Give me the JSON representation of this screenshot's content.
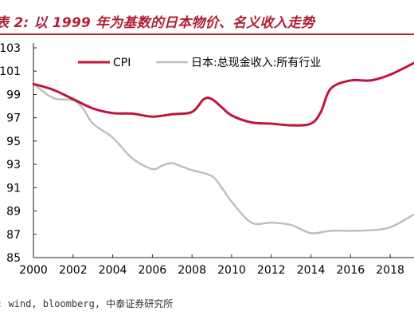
{
  "header": {
    "title": "表 2: 以 1999 年为基数的日本物价、名义收入走势"
  },
  "footer": {
    "source": ": wind, bloomberg, 中泰证券研究所"
  },
  "colors": {
    "accent": "#b01f35",
    "cpi": "#c0143c",
    "income": "#bdbdbd"
  },
  "chart_data": {
    "type": "line",
    "xlim": [
      2000,
      2019.2
    ],
    "ylim": [
      85,
      103
    ],
    "x_ticks": [
      2000,
      2002,
      2004,
      2006,
      2008,
      2010,
      2012,
      2014,
      2016,
      2018
    ],
    "y_ticks": [
      85,
      87,
      89,
      91,
      93,
      95,
      97,
      99,
      101,
      103
    ],
    "grid": false,
    "legend_position": "top-left",
    "series": [
      {
        "name": "CPI",
        "color": "#c0143c",
        "x": [
          2000,
          2001,
          2002,
          2003,
          2004,
          2005,
          2006,
          2007,
          2008,
          2008.6,
          2009,
          2009.5,
          2010,
          2011,
          2012,
          2013,
          2014,
          2014.5,
          2015,
          2016,
          2017,
          2018,
          2019.2
        ],
        "y": [
          99.9,
          99.4,
          98.6,
          97.8,
          97.4,
          97.35,
          97.1,
          97.3,
          97.5,
          98.6,
          98.6,
          97.9,
          97.2,
          96.6,
          96.5,
          96.35,
          96.5,
          97.5,
          99.5,
          100.2,
          100.2,
          100.7,
          101.7
        ]
      },
      {
        "name": "日本:总现金收入:所有行业",
        "color": "#bdbdbd",
        "x": [
          2000,
          2001,
          2002,
          2002.5,
          2003,
          2004,
          2005,
          2006,
          2006.5,
          2007,
          2007.5,
          2008,
          2009,
          2009.5,
          2010,
          2011,
          2012,
          2013,
          2014,
          2015,
          2016,
          2017,
          2018,
          2019.2
        ],
        "y": [
          99.9,
          98.7,
          98.5,
          97.8,
          96.5,
          95.3,
          93.5,
          92.6,
          92.9,
          93.1,
          92.8,
          92.5,
          92.0,
          91.0,
          89.8,
          88.0,
          88.0,
          87.8,
          87.1,
          87.3,
          87.3,
          87.35,
          87.6,
          88.7
        ]
      }
    ]
  }
}
